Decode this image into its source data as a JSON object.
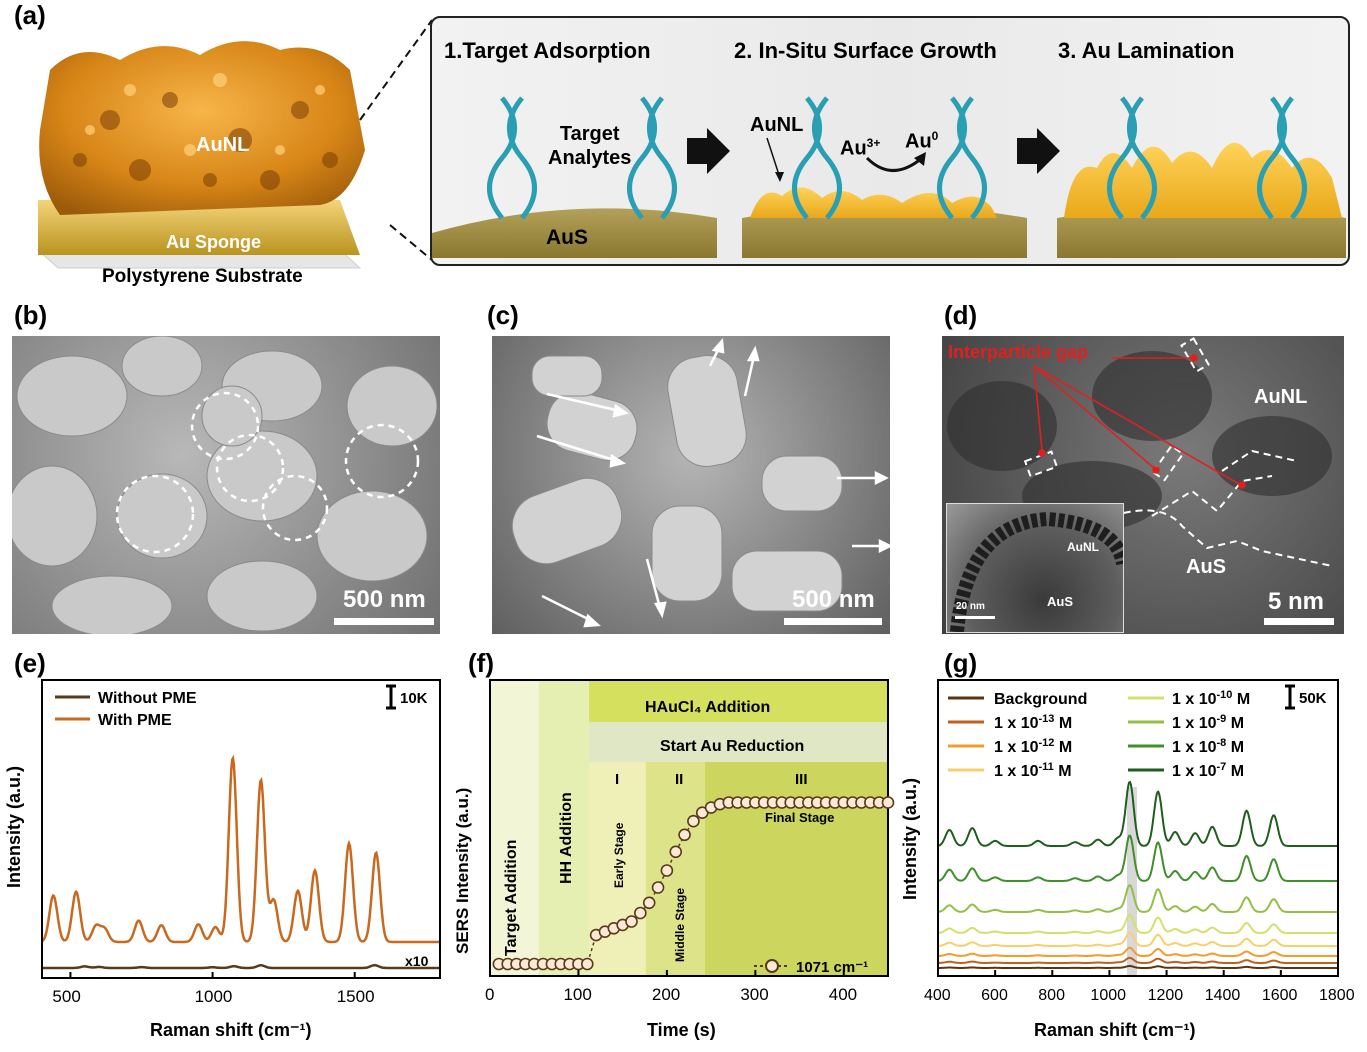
{
  "panels": {
    "a": "(a)",
    "b": "(b)",
    "c": "(c)",
    "d": "(d)",
    "e": "(e)",
    "f": "(f)",
    "g": "(g)"
  },
  "scheme": {
    "aunl_label": "AuNL",
    "sponge_label": "Au Sponge",
    "substrate_label": "Polystyrene Substrate",
    "step1": "1.Target Adsorption",
    "step2": "2. In-Situ Surface Growth",
    "step3": "3. Au Lamination",
    "target_line1": "Target",
    "target_line2": "Analytes",
    "aus_label": "AuS",
    "aunl_arrow_label": "AuNL",
    "au3_base": "Au",
    "au3_sup": "3+",
    "au0_base": "Au",
    "au0_sup": "0"
  },
  "sem": {
    "b_scale": "500 nm",
    "c_scale": "500 nm",
    "d_scale": "5 nm",
    "d_gap_label": "Interparticle gap",
    "d_aunl": "AuNL",
    "d_aus": "AuS",
    "d_inset_aunl": "AuNL",
    "d_inset_aus": "AuS",
    "d_inset_scale": "20 nm"
  },
  "chart_data": [
    {
      "panel": "e",
      "type": "line",
      "xlabel": "Raman shift (cm⁻¹)",
      "ylabel": "Intensity (a.u.)",
      "xlim": [
        400,
        1800
      ],
      "xticks": [
        500,
        1000,
        1500
      ],
      "scale_label": "10K",
      "multiplier_label": "x10",
      "legend": [
        "Without PME",
        "With PME"
      ],
      "series": [
        {
          "name": "Without PME",
          "color": "#5a3a1c",
          "baseline": 0,
          "peaks": [
            [
              550,
              0.9
            ],
            [
              600,
              0.6
            ],
            [
              750,
              0.5
            ],
            [
              1000,
              0.4
            ],
            [
              1075,
              1.0
            ],
            [
              1170,
              1.5
            ],
            [
              1570,
              1.6
            ]
          ]
        },
        {
          "name": "With PME",
          "color": "#c8691f",
          "baseline": 30,
          "peaks": [
            [
              440,
              5
            ],
            [
              520,
              5.4
            ],
            [
              590,
              1.7
            ],
            [
              620,
              1.4
            ],
            [
              740,
              2.3
            ],
            [
              820,
              1.8
            ],
            [
              950,
              1.9
            ],
            [
              1010,
              1.6
            ],
            [
              1071,
              19.8
            ],
            [
              1170,
              17.4
            ],
            [
              1215,
              4.5
            ],
            [
              1300,
              5.5
            ],
            [
              1360,
              7.7
            ],
            [
              1480,
              10.6
            ],
            [
              1575,
              9.6
            ]
          ]
        }
      ]
    },
    {
      "panel": "f",
      "type": "scatter",
      "xlabel": "Time (s)",
      "ylabel": "SERS Intensity (a.u.)",
      "xlim": [
        0,
        450
      ],
      "xticks": [
        0,
        100,
        200,
        300,
        400
      ],
      "series_name": "1071 cm⁻¹",
      "header1": "HAuCl₄ Addition",
      "header2": "Start Au Reduction",
      "regions": [
        "Target Addition",
        "HH Addition",
        "Early Stage",
        "Middle Stage",
        "Final Stage"
      ],
      "stages": [
        "I",
        "II",
        "III"
      ],
      "x": [
        10,
        20,
        30,
        40,
        50,
        60,
        70,
        80,
        90,
        100,
        110,
        120,
        130,
        140,
        150,
        160,
        170,
        180,
        190,
        200,
        210,
        220,
        230,
        240,
        250,
        260,
        270,
        280,
        290,
        300,
        310,
        320,
        330,
        340,
        350,
        360,
        370,
        380,
        390,
        400,
        410,
        420,
        430,
        440,
        450
      ],
      "y": [
        0.0,
        0.0,
        0.0,
        0.0,
        0.0,
        0.0,
        0.0,
        0.0,
        0.0,
        0.0,
        0.0,
        0.17,
        0.19,
        0.21,
        0.23,
        0.25,
        0.3,
        0.36,
        0.45,
        0.55,
        0.66,
        0.76,
        0.84,
        0.89,
        0.92,
        0.94,
        0.95,
        0.95,
        0.95,
        0.95,
        0.95,
        0.95,
        0.95,
        0.95,
        0.95,
        0.95,
        0.95,
        0.95,
        0.95,
        0.95,
        0.95,
        0.95,
        0.95,
        0.95,
        0.95
      ]
    },
    {
      "panel": "g",
      "type": "line",
      "xlabel": "Raman shift (cm⁻¹)",
      "ylabel": "Intensity (a.u.)",
      "xlim": [
        400,
        1800
      ],
      "xticks": [
        400,
        600,
        800,
        1000,
        1200,
        1400,
        1600,
        1800
      ],
      "scale_label": "50K",
      "series": [
        {
          "name": "Background",
          "color": "#5b3512",
          "level": 0.0
        },
        {
          "name": "1 x 10-13 M",
          "color": "#c0601a",
          "level": 0.05
        },
        {
          "name": "1 x 10-12 M",
          "color": "#f39c2a",
          "level": 0.1
        },
        {
          "name": "1 x 10-11 M",
          "color": "#f7d06a",
          "level": 0.18
        },
        {
          "name": "1 x 10-10 M",
          "color": "#d4e06a",
          "level": 0.26
        },
        {
          "name": "1 x 10-9 M",
          "color": "#93bf45",
          "level": 0.4
        },
        {
          "name": "1 x 10-8 M",
          "color": "#3f8f2a",
          "level": 0.7
        },
        {
          "name": "1 x 10-7 M",
          "color": "#1f5e1c",
          "level": 1.0
        }
      ],
      "legend_text": {
        "bg": "Background",
        "l1_base": "1 x 10",
        "l1_exp": "-13",
        "l1_unit": " M",
        "l2_base": "1 x 10",
        "l2_exp": "-12",
        "l2_unit": " M",
        "l3_base": "1 x 10",
        "l3_exp": "-11",
        "l3_unit": " M",
        "l4_base": "1 x 10",
        "l4_exp": "-10",
        "l4_unit": " M",
        "l5_base": "1 x 10",
        "l5_exp": "-9",
        "l5_unit": " M",
        "l6_base": "1 x 10",
        "l6_exp": "-8",
        "l6_unit": " M",
        "l7_base": "1 x 10",
        "l7_exp": "-7",
        "l7_unit": " M"
      }
    }
  ]
}
